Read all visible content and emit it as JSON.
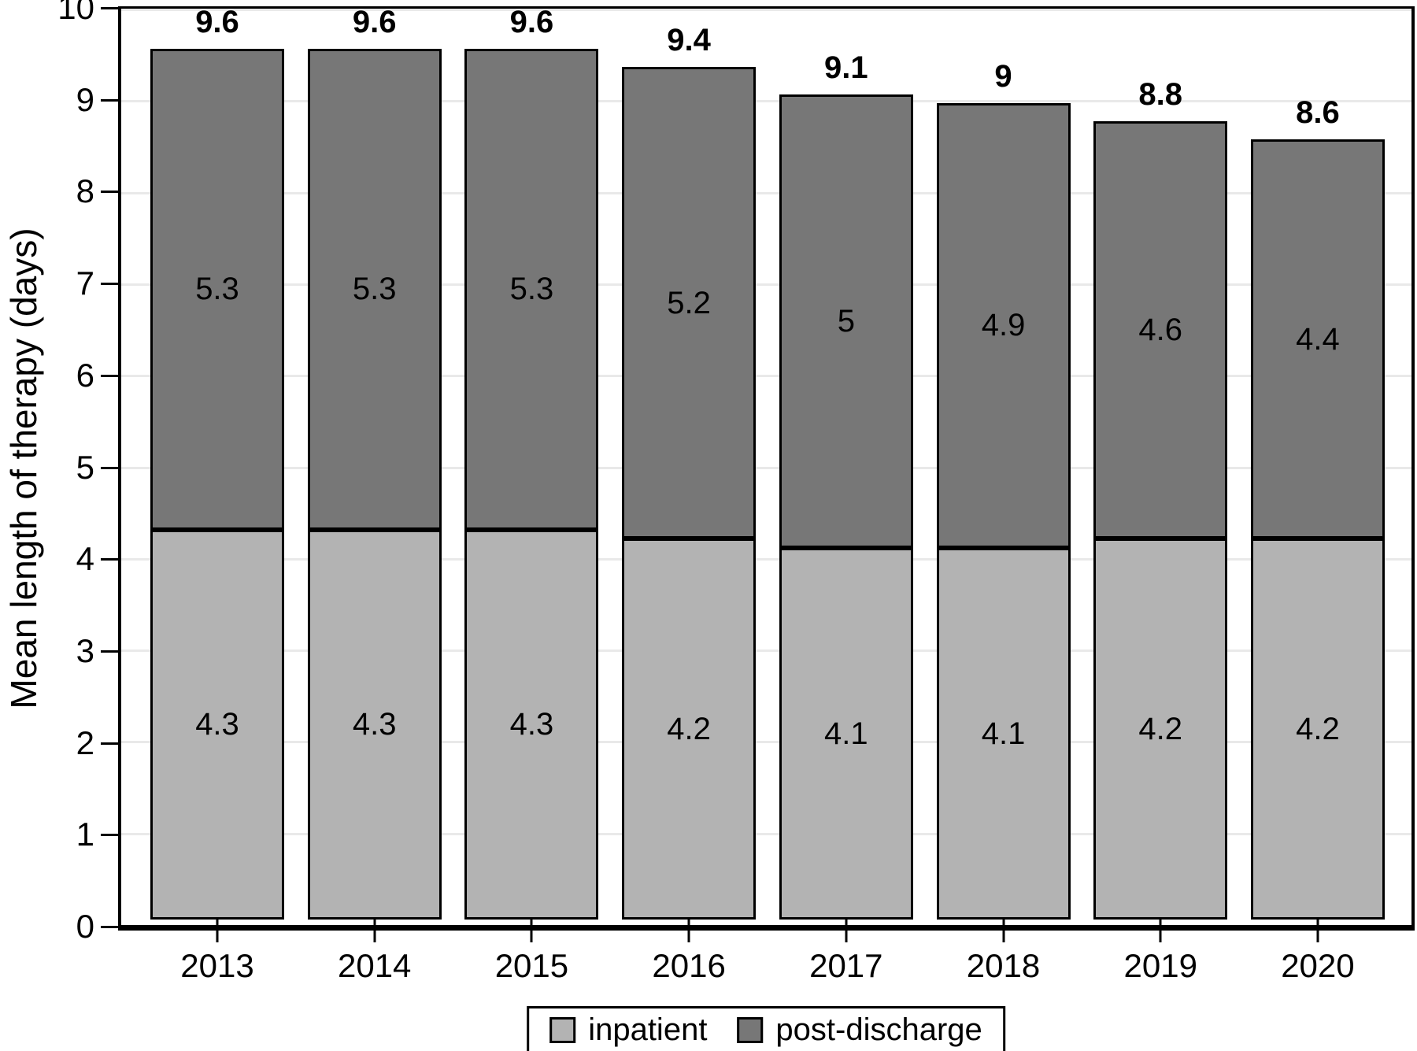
{
  "chart_data": {
    "type": "bar",
    "stacked": true,
    "title": "",
    "xlabel": "",
    "ylabel": "Mean length of therapy (days)",
    "ylim": [
      0,
      10
    ],
    "yticks": [
      0,
      1,
      2,
      3,
      4,
      5,
      6,
      7,
      8,
      9,
      10
    ],
    "grid": true,
    "gridline_color": "#e9e9e9",
    "categories": [
      "2013",
      "2014",
      "2015",
      "2016",
      "2017",
      "2018",
      "2019",
      "2020"
    ],
    "series": [
      {
        "name": "inpatient",
        "color": "#b3b3b3",
        "values": [
          4.3,
          4.3,
          4.3,
          4.2,
          4.1,
          4.1,
          4.2,
          4.2
        ],
        "labels": [
          "4.3",
          "4.3",
          "4.3",
          "4.2",
          "4.1",
          "4.1",
          "4.2",
          "4.2"
        ]
      },
      {
        "name": "post-discharge",
        "color": "#777777",
        "values": [
          5.3,
          5.3,
          5.3,
          5.2,
          5.0,
          4.9,
          4.6,
          4.4
        ],
        "labels": [
          "5.3",
          "5.3",
          "5.3",
          "5.2",
          "5",
          "4.9",
          "4.6",
          "4.4"
        ]
      }
    ],
    "totals": [
      9.6,
      9.6,
      9.6,
      9.4,
      9.1,
      9.0,
      8.8,
      8.6
    ],
    "total_labels": [
      "9.6",
      "9.6",
      "9.6",
      "9.4",
      "9.1",
      "9",
      "8.8",
      "8.6"
    ],
    "legend": [
      "inpatient",
      "post-discharge"
    ],
    "legend_position": "bottom",
    "bar_outline_color": "#000000"
  }
}
